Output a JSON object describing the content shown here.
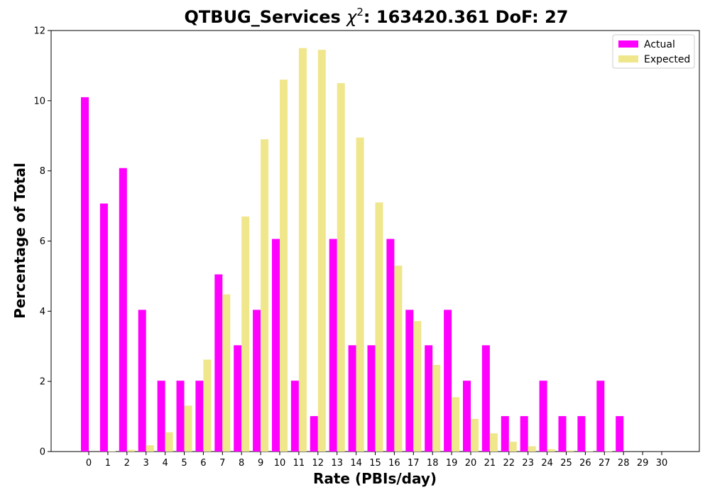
{
  "chart_data": {
    "type": "bar",
    "title_main": "QTBUG_Services ",
    "title_chi": "χ",
    "title_exp": "2",
    "title_rest": ": 163420.361 DoF: 27",
    "xlabel": "Rate (PBIs/day)",
    "ylabel": "Percentage of Total",
    "ylim": [
      0,
      12
    ],
    "yticks": [
      "0",
      "2",
      "4",
      "6",
      "8",
      "10",
      "12"
    ],
    "categories": [
      "0",
      "1",
      "2",
      "3",
      "4",
      "5",
      "6",
      "7",
      "8",
      "9",
      "10",
      "11",
      "12",
      "13",
      "14",
      "15",
      "16",
      "17",
      "18",
      "19",
      "20",
      "21",
      "22",
      "23",
      "24",
      "25",
      "26",
      "27",
      "28",
      "29",
      "30"
    ],
    "legend": {
      "placement": "top-right"
    },
    "grid": false,
    "series": [
      {
        "name": "Actual",
        "color": "#ff00ff",
        "values": [
          10.1,
          7.07,
          8.08,
          4.04,
          2.02,
          2.02,
          2.02,
          5.05,
          3.03,
          4.04,
          6.06,
          2.02,
          1.01,
          6.06,
          3.03,
          3.03,
          6.06,
          4.04,
          3.03,
          4.04,
          2.02,
          3.03,
          1.01,
          1.01,
          2.02,
          1.01,
          1.01,
          2.02,
          1.01,
          0,
          0
        ]
      },
      {
        "name": "Expected",
        "color": "#f0e68c",
        "values": [
          0.0,
          0.01,
          0.05,
          0.18,
          0.55,
          1.31,
          2.62,
          4.48,
          6.7,
          8.9,
          10.6,
          11.5,
          11.45,
          10.5,
          8.95,
          7.1,
          5.3,
          3.72,
          2.47,
          1.55,
          0.93,
          0.52,
          0.28,
          0.15,
          0.07,
          0.03,
          0.01,
          0.01,
          0.0,
          0.0,
          0.0
        ]
      }
    ]
  }
}
